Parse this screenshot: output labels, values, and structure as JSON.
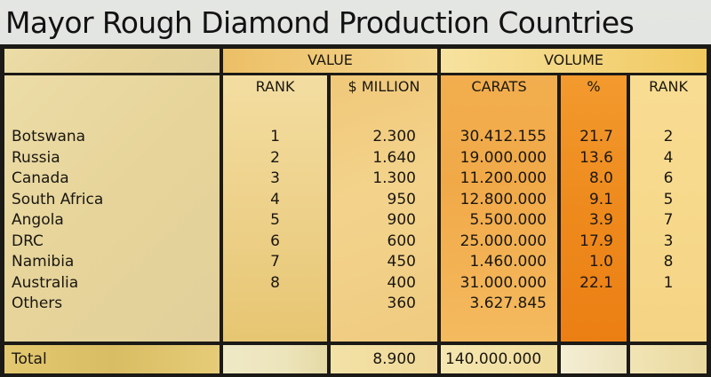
{
  "title": "Mayor Rough Diamond Production Countries",
  "header": {
    "value_group": "VALUE",
    "volume_group": "VOLUME",
    "columns": {
      "value_rank": "RANK",
      "million": "$ MILLION",
      "carats": "CARATS",
      "percent": "%",
      "volume_rank": "RANK"
    }
  },
  "rows": [
    {
      "country": "Botswana",
      "value_rank": "1",
      "million": "2.300",
      "carats": "30.412.155",
      "percent": "21.7",
      "volume_rank": "2"
    },
    {
      "country": "Russia",
      "value_rank": "2",
      "million": "1.640",
      "carats": "19.000.000",
      "percent": "13.6",
      "volume_rank": "4"
    },
    {
      "country": "Canada",
      "value_rank": "3",
      "million": "1.300",
      "carats": "11.200.000",
      "percent": "8.0",
      "volume_rank": "6"
    },
    {
      "country": "South Africa",
      "value_rank": "4",
      "million": "950",
      "carats": "12.800.000",
      "percent": "9.1",
      "volume_rank": "5"
    },
    {
      "country": "Angola",
      "value_rank": "5",
      "million": "900",
      "carats": "5.500.000",
      "percent": "3.9",
      "volume_rank": "7"
    },
    {
      "country": "DRC",
      "value_rank": "6",
      "million": "600",
      "carats": "25.000.000",
      "percent": "17.9",
      "volume_rank": "3"
    },
    {
      "country": "Namibia",
      "value_rank": "7",
      "million": "450",
      "carats": "1.460.000",
      "percent": "1.0",
      "volume_rank": "8"
    },
    {
      "country": "Australia",
      "value_rank": "8",
      "million": "400",
      "carats": "31.000.000",
      "percent": "22.1",
      "volume_rank": "1"
    },
    {
      "country": "Others",
      "value_rank": "",
      "million": "360",
      "carats": "3.627.845",
      "percent": "",
      "volume_rank": ""
    }
  ],
  "total": {
    "label": "Total",
    "value_rank": "",
    "million": "8.900",
    "carats": "140.000.000",
    "percent": "",
    "volume_rank": ""
  }
}
